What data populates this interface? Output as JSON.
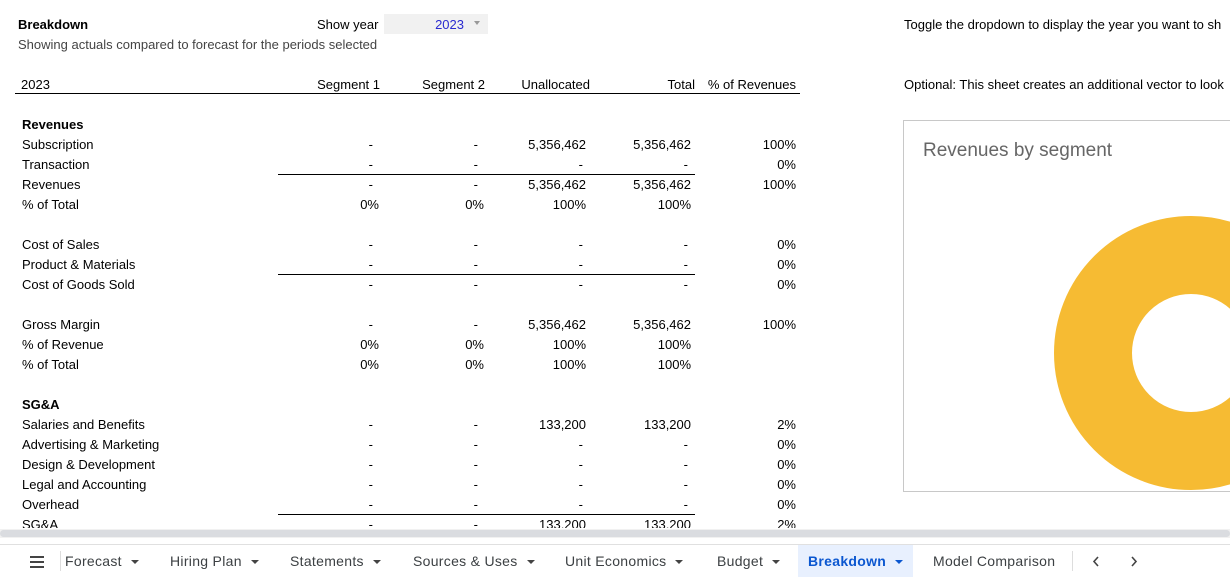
{
  "header": {
    "title": "Breakdown",
    "show_year_label": "Show year",
    "year": "2023",
    "subtitle": "Showing actuals compared to forecast for the periods selected"
  },
  "notes": [
    "Toggle the dropdown to display the year you want to sh",
    "Optional: This sheet creates an additional vector to look"
  ],
  "table": {
    "columns": [
      "2023",
      "Segment 1",
      "Segment 2",
      "Unallocated",
      "Total",
      "% of Revenues"
    ],
    "sections": [
      {
        "rows": [
          {
            "label": "Revenues"
          },
          {
            "label": "Subscription",
            "cells": [
              "-",
              "-",
              "5,356,462",
              "5,356,462",
              "100%"
            ]
          },
          {
            "label": "Transaction",
            "cells": [
              "-",
              "-",
              "-",
              "-",
              "0%"
            ]
          },
          {
            "label": "Revenues",
            "cells": [
              "-",
              "-",
              "5,356,462",
              "5,356,462",
              "100%"
            ]
          },
          {
            "label": "% of Total",
            "cells": [
              "0%",
              "0%",
              "100%",
              "100%",
              null
            ]
          }
        ]
      },
      {
        "rows": [
          {
            "label": "Cost of Sales",
            "cells": [
              "-",
              "-",
              "-",
              "-",
              "0%"
            ]
          },
          {
            "label": "Product & Materials",
            "cells": [
              "-",
              "-",
              "-",
              "-",
              "0%"
            ]
          },
          {
            "label": "Cost of Goods Sold",
            "cells": [
              "-",
              "-",
              "-",
              "-",
              "0%"
            ]
          }
        ]
      },
      {
        "rows": [
          {
            "label": "Gross Margin",
            "cells": [
              "-",
              "-",
              "5,356,462",
              "5,356,462",
              "100%"
            ]
          },
          {
            "label": "% of Revenue",
            "cells": [
              "0%",
              "0%",
              "100%",
              "100%",
              null
            ]
          },
          {
            "label": "% of Total",
            "cells": [
              "0%",
              "0%",
              "100%",
              "100%",
              null
            ]
          }
        ]
      },
      {
        "rows": [
          {
            "label": "SG&A"
          },
          {
            "label": "Salaries and Benefits",
            "cells": [
              "-",
              "-",
              "133,200",
              "133,200",
              "2%"
            ]
          },
          {
            "label": "Advertising & Marketing",
            "cells": [
              "-",
              "-",
              "-",
              "-",
              "0%"
            ]
          },
          {
            "label": "Design & Development",
            "cells": [
              "-",
              "-",
              "-",
              "-",
              "0%"
            ]
          },
          {
            "label": "Legal and Accounting",
            "cells": [
              "-",
              "-",
              "-",
              "-",
              "0%"
            ]
          },
          {
            "label": "Overhead",
            "cells": [
              "-",
              "-",
              "-",
              "-",
              "0%"
            ]
          },
          {
            "label": "SG&A",
            "cells": [
              "-",
              "-",
              "133,200",
              "133,200",
              "2%"
            ]
          }
        ]
      }
    ]
  },
  "chart": {
    "title": "Revenues by segment"
  },
  "tabs": {
    "items": [
      "Forecast",
      "Hiring Plan",
      "Statements",
      "Sources & Uses",
      "Unit Economics",
      "Budget",
      "Breakdown",
      "Model Comparison"
    ],
    "active": "Breakdown"
  }
}
